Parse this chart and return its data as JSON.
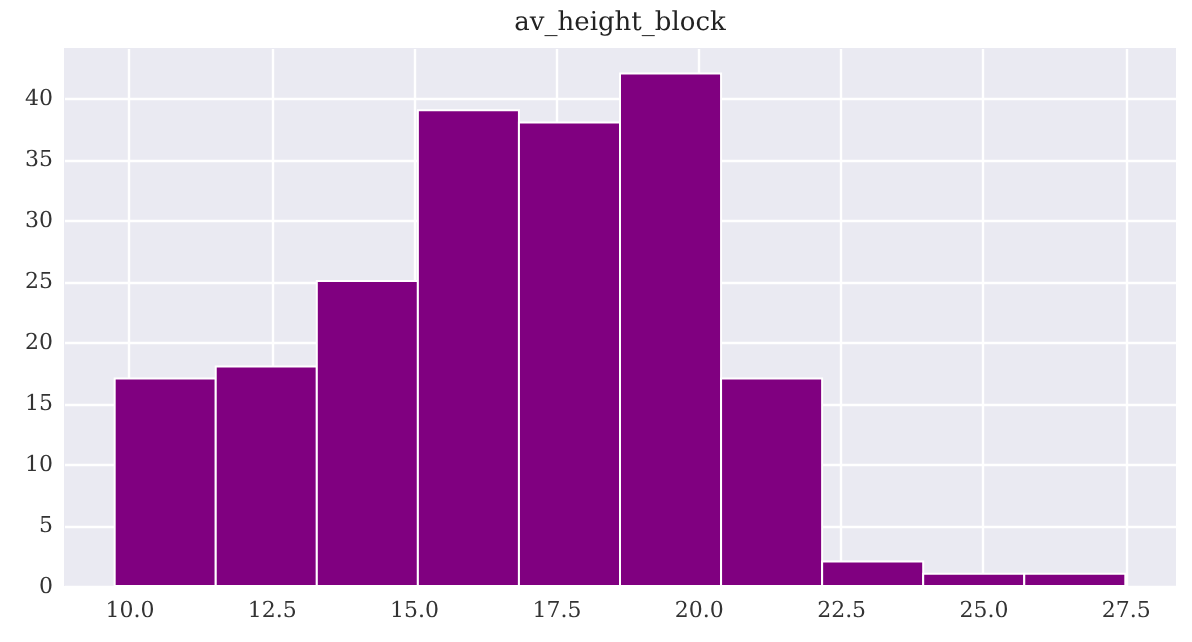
{
  "chart_data": {
    "type": "histogram",
    "title": "av_height_block",
    "bins": [
      9.75,
      11.525,
      13.3,
      15.075,
      16.85,
      18.625,
      20.4,
      22.175,
      23.95,
      25.725,
      27.5
    ],
    "values": [
      17,
      18,
      25,
      39,
      38,
      42,
      17,
      2,
      1,
      1
    ],
    "color": "#800080",
    "xlim": [
      8.86,
      28.39
    ],
    "xticks": [
      {
        "value": 10,
        "label": "10.0"
      },
      {
        "value": 12.5,
        "label": "12.5"
      },
      {
        "value": 15,
        "label": "15.0"
      },
      {
        "value": 17.5,
        "label": "17.5"
      },
      {
        "value": 20,
        "label": "20.0"
      },
      {
        "value": 22.5,
        "label": "22.5"
      },
      {
        "value": 25,
        "label": "25.0"
      },
      {
        "value": 27.5,
        "label": "27.5"
      }
    ],
    "ylim": [
      0,
      44.1
    ],
    "yticks": [
      0,
      5,
      10,
      15,
      20,
      25,
      30,
      35,
      40
    ],
    "grid": true
  }
}
